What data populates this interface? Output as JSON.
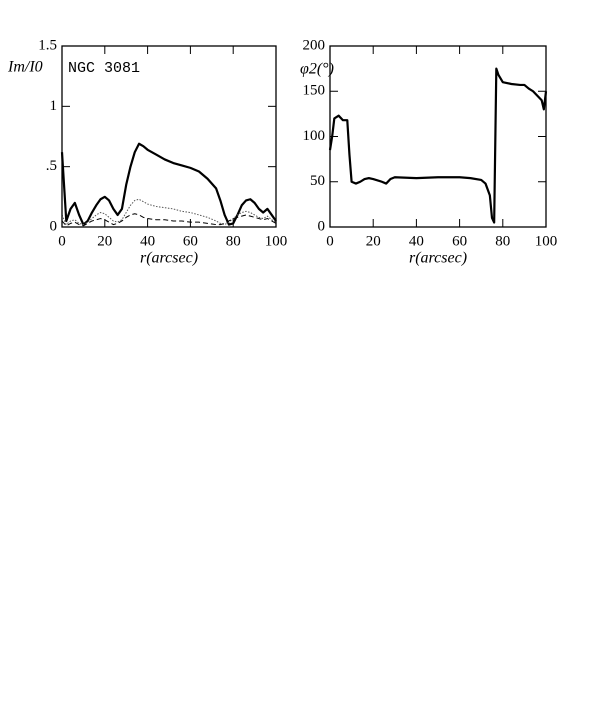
{
  "chart_data": [
    {
      "type": "line",
      "xlabel": "r(arcsec)",
      "ylabel": "Im/I0",
      "annotation": "NGC 3081",
      "xlim": [
        0,
        100
      ],
      "xticks": [
        0,
        20,
        40,
        60,
        80,
        100
      ],
      "ylim": [
        0,
        1.5
      ],
      "yticks": [
        0,
        {
          "value": 0.5,
          "label": ".5"
        },
        1,
        1.5
      ],
      "x": [
        0,
        2,
        4,
        6,
        8,
        10,
        12,
        14,
        16,
        18,
        20,
        22,
        24,
        26,
        28,
        30,
        32,
        34,
        36,
        38,
        40,
        44,
        48,
        52,
        56,
        60,
        64,
        68,
        72,
        74,
        76,
        78,
        80,
        82,
        84,
        86,
        88,
        90,
        92,
        94,
        96,
        98,
        100
      ],
      "series": [
        {
          "color": "#000000",
          "style": "solid",
          "values": [
            0.62,
            0.05,
            0.15,
            0.2,
            0.1,
            0.02,
            0.05,
            0.12,
            0.18,
            0.23,
            0.25,
            0.22,
            0.15,
            0.1,
            0.15,
            0.35,
            0.5,
            0.62,
            0.69,
            0.67,
            0.64,
            0.6,
            0.56,
            0.53,
            0.51,
            0.49,
            0.46,
            0.4,
            0.32,
            0.22,
            0.1,
            0.02,
            0.03,
            0.1,
            0.18,
            0.22,
            0.23,
            0.2,
            0.15,
            0.12,
            0.15,
            0.1,
            0.05
          ]
        },
        {
          "color": "#555555",
          "style": "dotted",
          "values": [
            0.1,
            0.02,
            0.05,
            0.06,
            0.03,
            0.02,
            0.04,
            0.07,
            0.1,
            0.12,
            0.11,
            0.08,
            0.05,
            0.04,
            0.06,
            0.12,
            0.18,
            0.22,
            0.23,
            0.21,
            0.19,
            0.17,
            0.16,
            0.15,
            0.13,
            0.12,
            0.1,
            0.08,
            0.05,
            0.03,
            0.02,
            0.04,
            0.07,
            0.1,
            0.12,
            0.13,
            0.12,
            0.1,
            0.08,
            0.07,
            0.09,
            0.06,
            0.04
          ]
        },
        {
          "color": "#000000",
          "style": "dashed",
          "values": [
            0.05,
            0.01,
            0.03,
            0.04,
            0.02,
            0.01,
            0.03,
            0.05,
            0.06,
            0.07,
            0.06,
            0.04,
            0.02,
            0.03,
            0.05,
            0.08,
            0.1,
            0.11,
            0.1,
            0.08,
            0.07,
            0.06,
            0.06,
            0.05,
            0.05,
            0.04,
            0.04,
            0.03,
            0.02,
            0.02,
            0.03,
            0.05,
            0.07,
            0.08,
            0.09,
            0.1,
            0.09,
            0.08,
            0.07,
            0.06,
            0.07,
            0.05,
            0.03
          ]
        }
      ]
    },
    {
      "type": "line",
      "xlabel": "r(arcsec)",
      "ylabel": "φ2(°)",
      "xlim": [
        0,
        100
      ],
      "xticks": [
        0,
        20,
        40,
        60,
        80,
        100
      ],
      "ylim": [
        0,
        200
      ],
      "yticks": [
        0,
        50,
        100,
        150,
        200
      ],
      "x": [
        0,
        1,
        2,
        4,
        6,
        8,
        9,
        10,
        12,
        14,
        16,
        18,
        20,
        24,
        26,
        28,
        30,
        40,
        50,
        60,
        65,
        70,
        72,
        74,
        75,
        76,
        77,
        78,
        80,
        84,
        88,
        90,
        92,
        94,
        96,
        98,
        99,
        100
      ],
      "series": [
        {
          "color": "#000000",
          "style": "solid",
          "values": [
            85,
            100,
            120,
            123,
            118,
            118,
            80,
            50,
            48,
            50,
            53,
            54,
            53,
            50,
            48,
            53,
            55,
            54,
            55,
            55,
            54,
            52,
            48,
            35,
            10,
            5,
            175,
            168,
            160,
            158,
            157,
            157,
            153,
            150,
            145,
            140,
            130,
            150
          ]
        }
      ]
    }
  ]
}
